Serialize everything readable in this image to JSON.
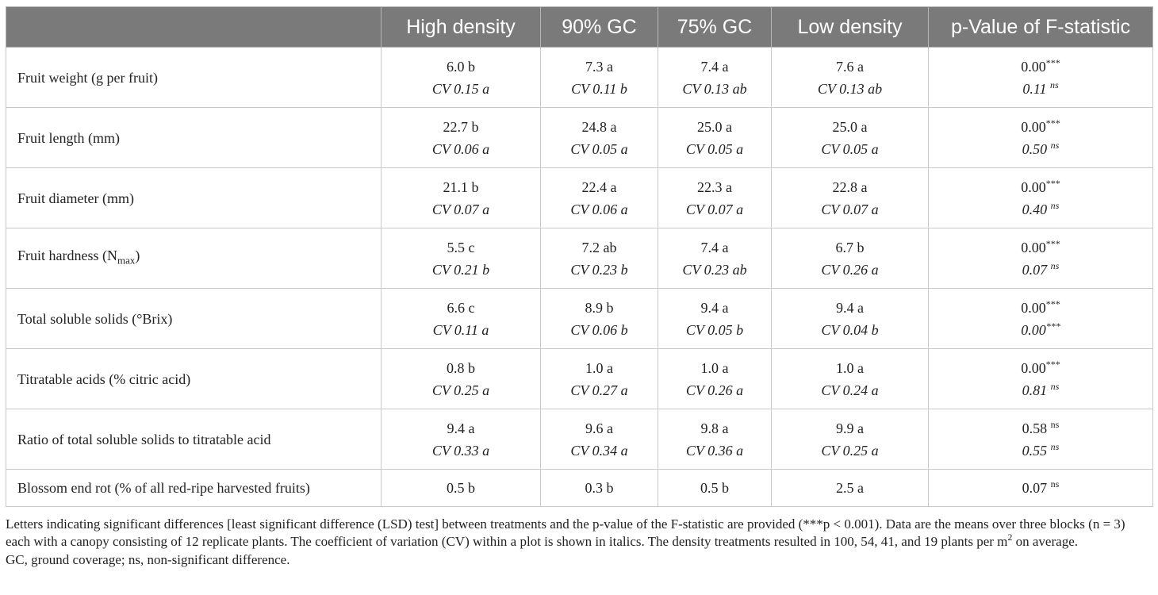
{
  "table": {
    "headers": [
      "",
      "High density",
      "90% GC",
      "75% GC",
      "Low density",
      "p-Value of F-statistic"
    ],
    "rows": [
      {
        "label": "Fruit weight (g per fruit)",
        "values": [
          "6.0 b",
          "7.3 a",
          "7.4 a",
          "7.6 a"
        ],
        "cv": [
          "CV 0.15 a",
          "CV 0.11 b",
          "CV 0.13 ab",
          "CV 0.13 ab"
        ],
        "p": "0.00",
        "p_sig": "***",
        "p_cv": "0.11",
        "p_cv_sig": "ns"
      },
      {
        "label": "Fruit length (mm)",
        "values": [
          "22.7 b",
          "24.8 a",
          "25.0 a",
          "25.0 a"
        ],
        "cv": [
          "CV 0.06 a",
          "CV 0.05 a",
          "CV 0.05 a",
          "CV 0.05 a"
        ],
        "p": "0.00",
        "p_sig": "***",
        "p_cv": "0.50",
        "p_cv_sig": "ns"
      },
      {
        "label": "Fruit diameter (mm)",
        "values": [
          "21.1 b",
          "22.4 a",
          "22.3 a",
          "22.8 a"
        ],
        "cv": [
          "CV 0.07 a",
          "CV 0.06 a",
          "CV 0.07 a",
          "CV 0.07 a"
        ],
        "p": "0.00",
        "p_sig": "***",
        "p_cv": "0.40",
        "p_cv_sig": "ns"
      },
      {
        "label": "Fruit hardness (N",
        "label_sub": "max",
        "label_after": ")",
        "values": [
          "5.5 c",
          "7.2 ab",
          "7.4 a",
          "6.7 b"
        ],
        "cv": [
          "CV 0.21 b",
          "CV 0.23 b",
          "CV 0.23 ab",
          "CV 0.26 a"
        ],
        "p": "0.00",
        "p_sig": "***",
        "p_cv": "0.07",
        "p_cv_sig": "ns"
      },
      {
        "label": "Total soluble solids (°Brix)",
        "values": [
          "6.6 c",
          "8.9 b",
          "9.4 a",
          "9.4 a"
        ],
        "cv": [
          "CV 0.11 a",
          "CV 0.06 b",
          "CV 0.05 b",
          "CV 0.04 b"
        ],
        "p": "0.00",
        "p_sig": "***",
        "p_cv": "0.00",
        "p_cv_sig": "***"
      },
      {
        "label": "Titratable acids (% citric acid)",
        "values": [
          "0.8 b",
          "1.0 a",
          "1.0 a",
          "1.0 a"
        ],
        "cv": [
          "CV 0.25 a",
          "CV 0.27 a",
          "CV 0.26 a",
          "CV 0.24 a"
        ],
        "p": "0.00",
        "p_sig": "***",
        "p_cv": "0.81",
        "p_cv_sig": "ns"
      },
      {
        "label": "Ratio of total soluble solids to titratable acid",
        "values": [
          "9.4 a",
          "9.6 a",
          "9.8 a",
          "9.9 a"
        ],
        "cv": [
          "CV 0.33 a",
          "CV 0.34 a",
          "CV 0.36 a",
          "CV 0.25 a"
        ],
        "p": "0.58",
        "p_sig": "ns",
        "p_cv": "0.55",
        "p_cv_sig": "ns"
      },
      {
        "label": "Blossom end rot (% of all red-ripe harvested fruits)",
        "values": [
          "0.5 b",
          "0.3 b",
          "0.5 b",
          "2.5 a"
        ],
        "cv": [],
        "p": "0.07",
        "p_sig": "ns",
        "p_cv": "",
        "p_cv_sig": ""
      }
    ]
  },
  "footnote": {
    "line1_part1": "Letters indicating significant differences [least significant difference (LSD) test] between treatments and the p-value of the F-statistic are provided (***p < 0.001). Data are the means over three blocks (n = 3) each with a canopy consisting of 12 replicate plants. The coefficient of variation (CV) within a plot is shown in italics. The density treatments resulted in 100, 54, 41, and 19 plants per m",
    "line1_sup": "2",
    "line1_part2": " on average.",
    "line2": "GC, ground coverage; ns, non-significant difference."
  }
}
